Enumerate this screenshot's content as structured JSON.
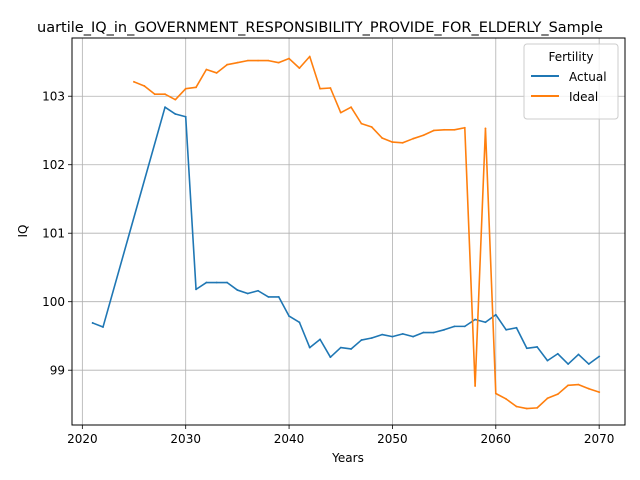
{
  "chart_data": {
    "type": "line",
    "title": "uartile_IQ_in_GOVERNMENT_RESPONSIBILITY_PROVIDE_FOR_ELDERLY_Sample",
    "xlabel": "Years",
    "ylabel": "IQ",
    "xlim": [
      2019,
      2072.5
    ],
    "ylim": [
      98.2,
      103.85
    ],
    "x_ticks": [
      2020,
      2030,
      2040,
      2050,
      2060,
      2070
    ],
    "y_ticks": [
      99,
      100,
      101,
      102,
      103
    ],
    "grid": true,
    "legend": {
      "title": "Fertility",
      "placement": "top-right"
    },
    "series": [
      {
        "name": "Actual",
        "color": "#1f77b4",
        "x": [
          2021,
          2022,
          2028,
          2029,
          2030,
          2031,
          2032,
          2033,
          2034,
          2035,
          2036,
          2037,
          2038,
          2039,
          2040,
          2041,
          2042,
          2043,
          2044,
          2045,
          2046,
          2047,
          2048,
          2049,
          2050,
          2051,
          2052,
          2053,
          2054,
          2055,
          2056,
          2057,
          2058,
          2059,
          2060,
          2061,
          2062,
          2063,
          2064,
          2065,
          2066,
          2067,
          2068,
          2069,
          2070
        ],
        "values": [
          99.69,
          99.63,
          102.84,
          102.74,
          102.7,
          100.18,
          100.28,
          100.28,
          100.28,
          100.17,
          100.12,
          100.16,
          100.07,
          100.07,
          99.79,
          99.7,
          99.33,
          99.45,
          99.19,
          99.33,
          99.31,
          99.44,
          99.47,
          99.52,
          99.49,
          99.53,
          99.49,
          99.55,
          99.55,
          99.59,
          99.64,
          99.64,
          99.74,
          99.7,
          99.81,
          99.59,
          99.62,
          99.32,
          99.34,
          99.14,
          99.24,
          99.09,
          99.23,
          99.09,
          99.2
        ]
      },
      {
        "name": "Ideal",
        "color": "#ff7f0e",
        "x": [
          2025,
          2026,
          2027,
          2028,
          2029,
          2030,
          2031,
          2032,
          2033,
          2034,
          2035,
          2036,
          2037,
          2038,
          2039,
          2040,
          2041,
          2042,
          2043,
          2044,
          2045,
          2046,
          2047,
          2048,
          2049,
          2050,
          2051,
          2052,
          2053,
          2054,
          2055,
          2056,
          2057,
          2058,
          2059,
          2060,
          2061,
          2062,
          2063,
          2064,
          2065,
          2066,
          2067,
          2068,
          2069,
          2070
        ],
        "values": [
          103.21,
          103.15,
          103.03,
          103.03,
          102.95,
          103.11,
          103.13,
          103.39,
          103.34,
          103.46,
          103.49,
          103.52,
          103.52,
          103.52,
          103.49,
          103.55,
          103.41,
          103.58,
          103.11,
          103.12,
          102.76,
          102.84,
          102.6,
          102.55,
          102.39,
          102.33,
          102.32,
          102.38,
          102.43,
          102.5,
          102.51,
          102.51,
          102.54,
          98.77,
          102.53,
          98.66,
          98.58,
          98.47,
          98.44,
          98.45,
          98.59,
          98.65,
          98.78,
          98.79,
          98.73,
          98.68
        ]
      }
    ]
  }
}
